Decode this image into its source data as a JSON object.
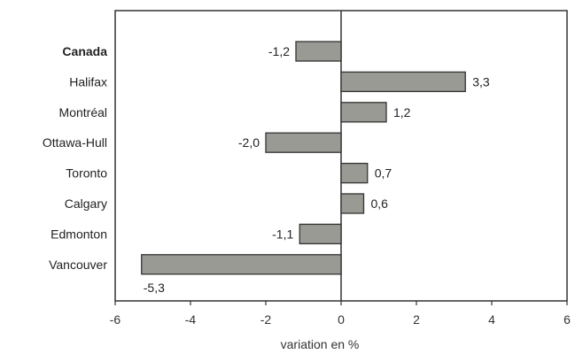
{
  "chart_data": {
    "type": "bar",
    "orientation": "horizontal",
    "categories": [
      "Canada",
      "Halifax",
      "Montréal",
      "Ottawa-Hull",
      "Toronto",
      "Calgary",
      "Edmonton",
      "Vancouver"
    ],
    "bold_categories": [
      "Canada"
    ],
    "values": [
      -1.2,
      3.3,
      1.2,
      -2.0,
      0.7,
      0.6,
      -1.1,
      -5.3
    ],
    "value_labels": [
      "-1,2",
      "3,3",
      "1,2",
      "-2,0",
      "0,7",
      "0,6",
      "-1,1",
      "-5,3"
    ],
    "xlabel": "variation en %",
    "xlim": [
      -6,
      6
    ],
    "xticks": [
      -6,
      -4,
      -2,
      0,
      2,
      4,
      6
    ],
    "xtick_labels": [
      "-6",
      "-4",
      "-2",
      "0",
      "2",
      "4",
      "6"
    ],
    "grid": false,
    "bar_color": "#9a9a94",
    "bar_edge_color": "#333333"
  }
}
